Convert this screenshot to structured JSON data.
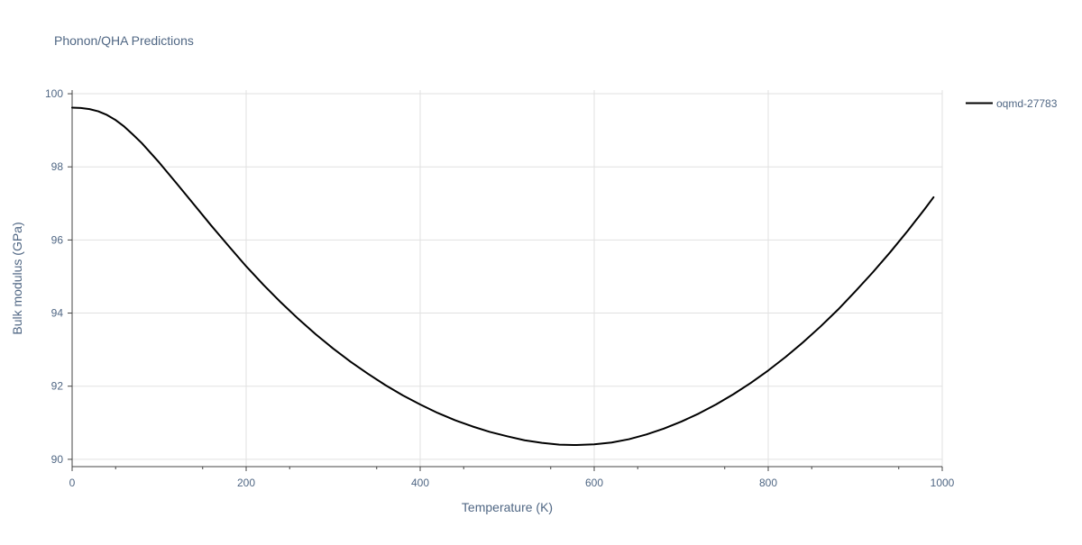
{
  "chart_data": {
    "type": "line",
    "title": "Phonon/QHA Predictions",
    "xlabel": "Temperature (K)",
    "ylabel": "Bulk modulus (GPa)",
    "xlim": [
      0,
      1000
    ],
    "ylim": [
      89.8,
      100.1
    ],
    "xticks": [
      0,
      200,
      400,
      600,
      800,
      1000
    ],
    "yticks": [
      90,
      92,
      94,
      96,
      98,
      100
    ],
    "grid": true,
    "legend_position": "top-right",
    "colors": {
      "series": "#000000",
      "grid": "#e1e1e1",
      "axis": "#444444",
      "text": "#506784"
    },
    "series": [
      {
        "name": "oqmd-27783",
        "x": [
          0,
          10,
          20,
          30,
          40,
          50,
          60,
          70,
          80,
          100,
          120,
          140,
          160,
          180,
          200,
          220,
          240,
          260,
          280,
          300,
          320,
          340,
          360,
          380,
          400,
          420,
          440,
          460,
          480,
          500,
          520,
          540,
          560,
          580,
          600,
          620,
          640,
          660,
          680,
          700,
          720,
          740,
          760,
          780,
          800,
          820,
          840,
          860,
          880,
          900,
          920,
          940,
          960,
          980,
          990
        ],
        "y": [
          99.62,
          99.61,
          99.58,
          99.52,
          99.42,
          99.28,
          99.1,
          98.88,
          98.65,
          98.12,
          97.55,
          96.97,
          96.39,
          95.83,
          95.28,
          94.77,
          94.29,
          93.84,
          93.42,
          93.03,
          92.67,
          92.34,
          92.03,
          91.75,
          91.5,
          91.27,
          91.07,
          90.9,
          90.75,
          90.63,
          90.52,
          90.45,
          90.4,
          90.39,
          90.41,
          90.46,
          90.55,
          90.68,
          90.84,
          91.03,
          91.25,
          91.5,
          91.78,
          92.09,
          92.43,
          92.8,
          93.2,
          93.63,
          94.09,
          94.59,
          95.11,
          95.66,
          96.24,
          96.85,
          97.17
        ]
      }
    ]
  }
}
